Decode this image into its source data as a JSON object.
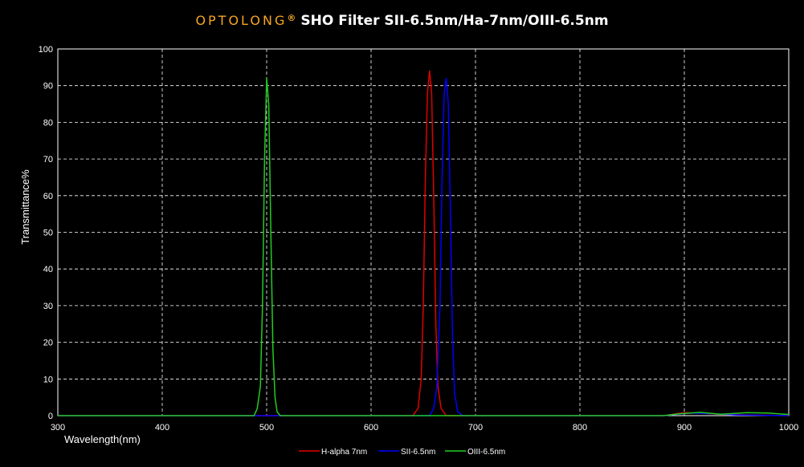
{
  "header": {
    "brand": "OPTOLONG",
    "registered_mark": "®",
    "title": "SHO Filter SII-6.5nm/Ha-7nm/OIII-6.5nm"
  },
  "chart_data": {
    "type": "line",
    "title": "SHO Filter SII-6.5nm/Ha-7nm/OIII-6.5nm",
    "xlabel": "Wavelength(nm)",
    "ylabel": "Transmittance%",
    "xlim": [
      300,
      1000
    ],
    "ylim": [
      0,
      100
    ],
    "xticks": [
      300,
      400,
      500,
      600,
      700,
      800,
      900,
      1000
    ],
    "yticks": [
      0,
      10,
      20,
      30,
      40,
      50,
      60,
      70,
      80,
      90,
      100
    ],
    "grid": true,
    "background": "#000000",
    "legend_position": "bottom",
    "series": [
      {
        "name": "H-alpha 7nm",
        "color": "#e00000",
        "x": [
          300,
          600,
          640,
          645,
          648,
          650,
          652,
          654,
          656,
          658,
          660,
          662,
          664,
          667,
          672,
          700,
          880,
          900,
          920,
          940,
          1000
        ],
        "y": [
          0,
          0,
          0,
          2,
          10,
          30,
          65,
          88,
          94,
          88,
          60,
          25,
          8,
          2,
          0,
          0,
          0,
          0.8,
          0.6,
          0.3,
          0
        ]
      },
      {
        "name": "SII-6.5nm",
        "color": "#0000ff",
        "x": [
          300,
          640,
          656,
          660,
          663,
          666,
          668,
          670,
          672,
          674,
          676,
          678,
          680,
          683,
          688,
          700,
          880,
          905,
          930,
          950,
          1000
        ],
        "y": [
          0,
          0,
          0,
          2,
          8,
          30,
          65,
          88,
          92,
          85,
          55,
          22,
          6,
          1,
          0,
          0,
          0,
          0.7,
          0.5,
          0.2,
          0
        ]
      },
      {
        "name": "OIII-6.5nm",
        "color": "#22cc22",
        "x": [
          300,
          480,
          488,
          491,
          494,
          496,
          498,
          500,
          502,
          504,
          506,
          508,
          510,
          513,
          520,
          880,
          895,
          915,
          935,
          960,
          980,
          1000
        ],
        "y": [
          0,
          0,
          0,
          2,
          8,
          30,
          70,
          92,
          85,
          50,
          18,
          5,
          1,
          0,
          0,
          0,
          0.5,
          0.9,
          0.4,
          0.8,
          0.7,
          0.3
        ]
      }
    ]
  }
}
